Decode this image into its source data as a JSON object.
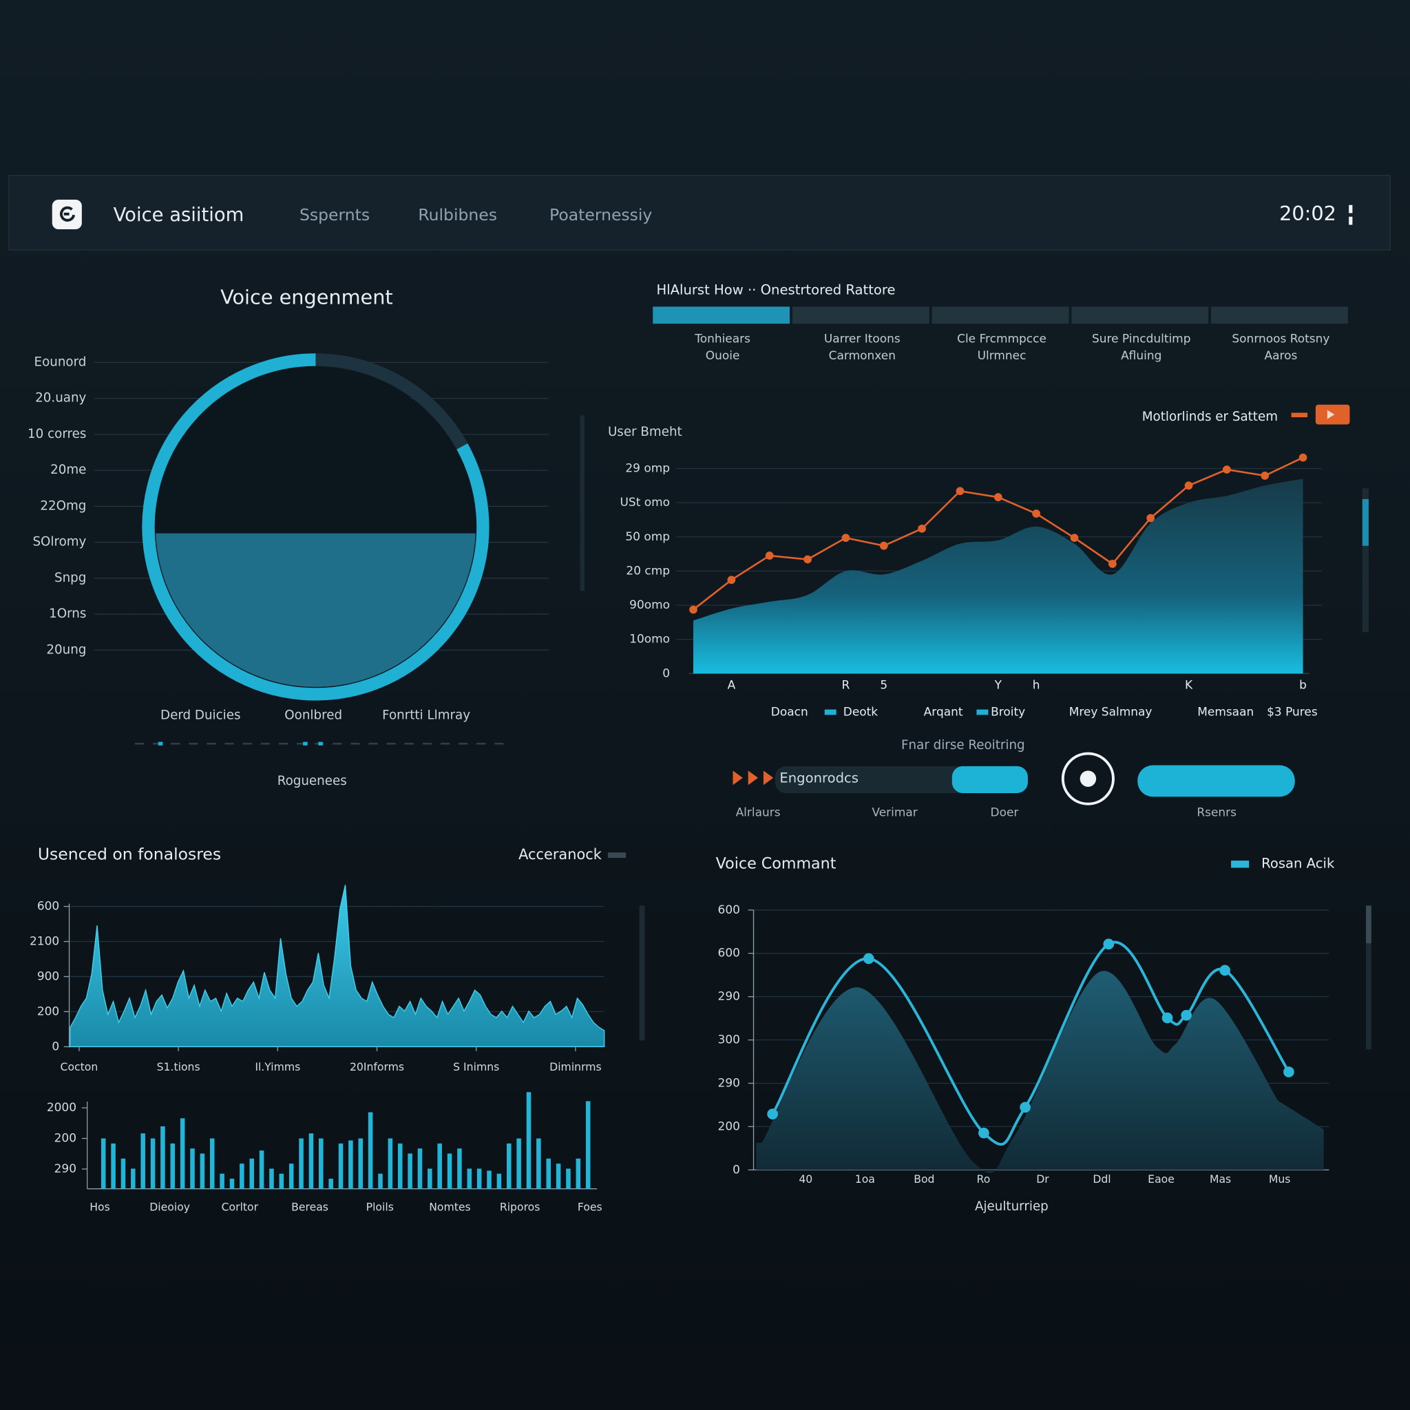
{
  "header": {
    "title": "Voice asiitiom",
    "nav": [
      "Sspernts",
      "Rulbibnes",
      "Poaternessiy"
    ],
    "time": "20:02"
  },
  "tabs": {
    "label": "HlAlurst How ·· Onestrtored Rattore",
    "active": 0,
    "items": [
      [
        "Tonhiears",
        "Ouoie"
      ],
      [
        "Uarrer Itoons",
        "Carmonxen"
      ],
      [
        "Cle Frcmmpcce",
        "Ulrmnec"
      ],
      [
        "Sure Pincdultimp",
        "Afluing"
      ],
      [
        "Sonrnoos Rotsny",
        "Aaros"
      ]
    ]
  },
  "controls": {
    "title": "Fnar dirse Reoitring",
    "bar_label": "Engonrodcs",
    "progress": 30,
    "labels": [
      "Alrlaurs",
      "Verimar",
      "Doer"
    ],
    "pill_label": "Rsenrs"
  },
  "chart_data": [
    {
      "type": "gauge",
      "title": "Voice engenment",
      "value": 83,
      "fill": 48,
      "row_labels": [
        "Eounord",
        "20.uany",
        "10 corres",
        "20me",
        "22Omg",
        "SOlromy",
        "Snpg",
        "1Orns",
        "20ung"
      ],
      "legend": [
        "Derd Duicies",
        "Oonlbred",
        "Fonrtti Llmray"
      ],
      "footer": "Roguenees"
    },
    {
      "type": "line",
      "ylabel": "User Bmeht",
      "ylim": [
        0,
        6.5
      ],
      "ylabels": [
        "29 omp",
        "USt omo",
        "50 omp",
        "20 cmp",
        "90omo",
        "10omo",
        "0"
      ],
      "categories": [
        null,
        "A",
        null,
        null,
        "R",
        "5",
        null,
        null,
        "Y",
        "h",
        null,
        null,
        null,
        "K",
        null,
        null,
        "b"
      ],
      "series": [
        {
          "type": "area",
          "color": "#16b4d8",
          "values": [
            1.55,
            1.9,
            2.1,
            2.3,
            3.0,
            2.9,
            3.3,
            3.8,
            3.9,
            4.3,
            3.8,
            2.9,
            4.4,
            5.0,
            5.2,
            5.5,
            5.7
          ]
        },
        {
          "name": "Motlorlinds er Sattem",
          "color": "#e0622a",
          "values": [
            1.87,
            2.74,
            3.45,
            3.34,
            3.97,
            3.74,
            4.24,
            5.34,
            5.16,
            4.68,
            3.97,
            3.21,
            4.55,
            5.5,
            5.97,
            5.79,
            6.32
          ]
        }
      ],
      "legend_row": [
        "Doacn",
        "Deotk",
        "Arqant",
        "Broity",
        "Mrey Salmnay",
        "Memsaan",
        "$3 Pures"
      ]
    },
    {
      "type": "area",
      "title": "Usenced on fonalosres",
      "legend": "Acceranock",
      "color": "#27c3e6",
      "ylim": [
        0,
        100
      ],
      "ylabels": [
        "600",
        "2100",
        "900",
        "200",
        "0"
      ],
      "xlabels": [
        "Cocton",
        "S1.tions",
        "Il.Yimms",
        "20Informs",
        "S Inimns",
        "Diminrms"
      ],
      "values": [
        12,
        18,
        25,
        30,
        45,
        75,
        35,
        20,
        28,
        15,
        22,
        30,
        18,
        25,
        35,
        20,
        28,
        32,
        24,
        30,
        40,
        47,
        30,
        38,
        25,
        35,
        28,
        30,
        22,
        33,
        25,
        30,
        28,
        35,
        40,
        30,
        46,
        35,
        30,
        67,
        45,
        30,
        25,
        28,
        35,
        40,
        58,
        38,
        30,
        55,
        85,
        100,
        50,
        35,
        30,
        28,
        40,
        32,
        25,
        20,
        18,
        25,
        22,
        28,
        20,
        30,
        25,
        22,
        18,
        28,
        20,
        25,
        30,
        22,
        28,
        35,
        32,
        25,
        20,
        18,
        22,
        18,
        25,
        20,
        15,
        22,
        18,
        20,
        25,
        28,
        20,
        22,
        25,
        18,
        30,
        26,
        20,
        15,
        12,
        10
      ]
    },
    {
      "type": "bar",
      "color": "#22b5d8",
      "ylim": [
        0,
        100
      ],
      "ylabels": [
        "2000",
        "200",
        "290"
      ],
      "xlabels": [
        "Hos",
        "Dieoioy",
        "Corltor",
        "Bereas",
        "Ploils",
        "Nomtes",
        "Riporos",
        "Foes"
      ],
      "values": [
        50,
        45,
        30,
        20,
        55,
        50,
        62,
        45,
        70,
        40,
        35,
        50,
        15,
        10,
        25,
        30,
        38,
        20,
        15,
        25,
        50,
        55,
        50,
        10,
        45,
        48,
        50,
        76,
        15,
        50,
        45,
        35,
        40,
        20,
        45,
        35,
        40,
        20,
        20,
        18,
        15,
        45,
        50,
        96,
        50,
        30,
        25,
        20,
        30,
        87
      ]
    },
    {
      "type": "curve",
      "title": "Voice Commant",
      "xlim": [
        0,
        100
      ],
      "ylim": [
        0,
        100
      ],
      "xlabel": "Ajeulturriep",
      "ylabels": [
        "600",
        "600",
        "290",
        "300",
        "290",
        "200",
        "0"
      ],
      "xlabels": [
        "40",
        "1oa",
        "Bod",
        "Ro",
        "Dr",
        "Ddl",
        "Eaoe",
        "Mas",
        "Mus"
      ],
      "x": [
        3.3,
        20.0,
        40.0,
        47.2,
        61.7,
        71.9,
        75.2,
        81.9,
        93.0
      ],
      "series": [
        {
          "name": "Rosan Acik",
          "color": "#2bb6d9",
          "values": [
            21.5,
            81.3,
            14.2,
            24.1,
            86.9,
            58.5,
            59.5,
            76.8,
            37.7
          ]
        }
      ]
    }
  ]
}
